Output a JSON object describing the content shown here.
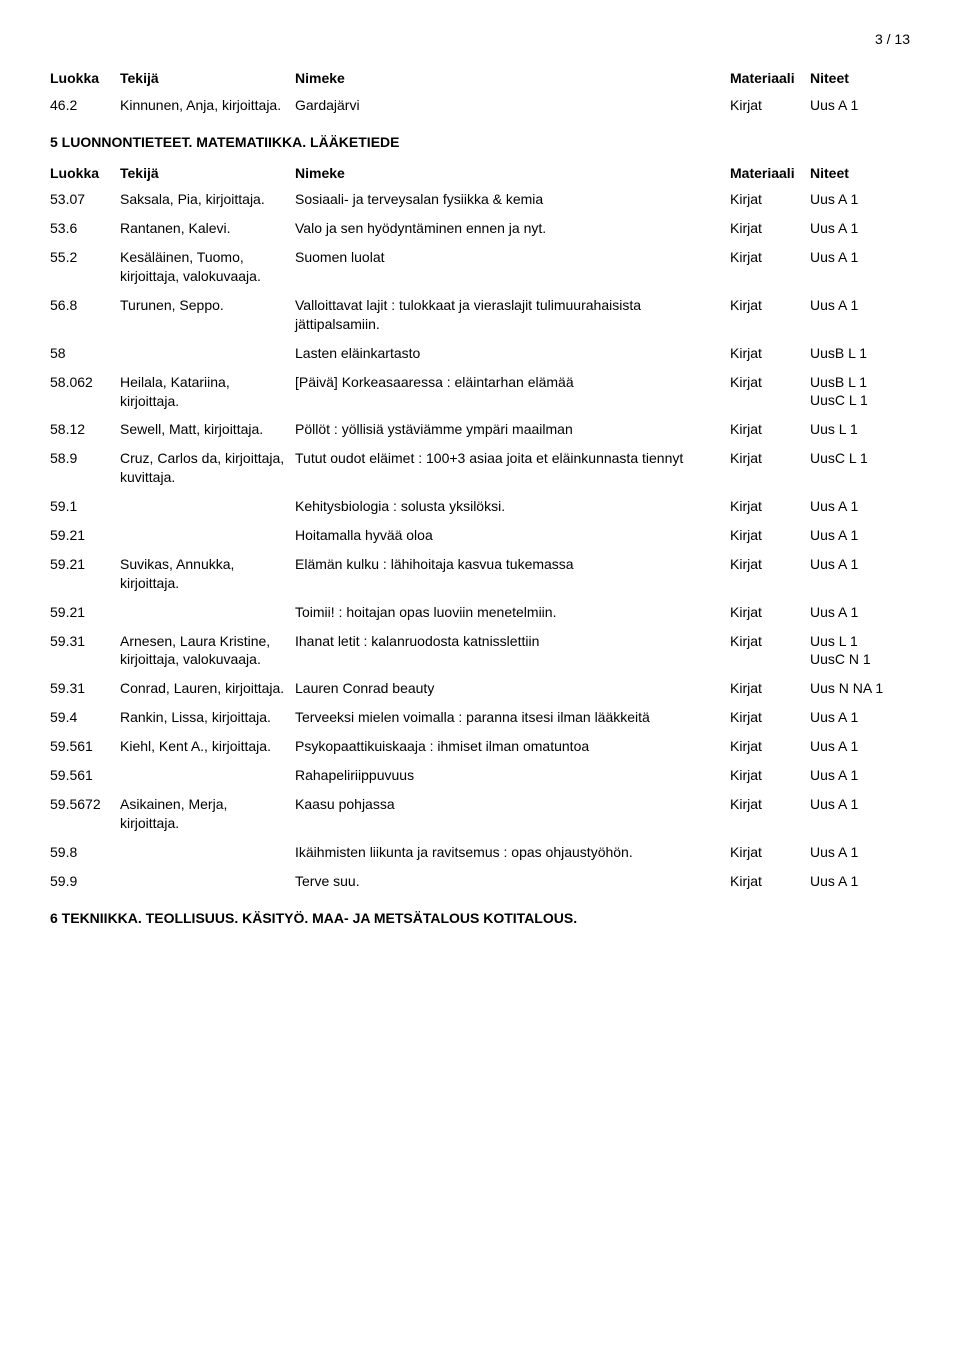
{
  "page_number": "3 / 13",
  "header_labels": {
    "luokka": "Luokka",
    "tekija": "Tekijä",
    "nimeke": "Nimeke",
    "materiaali": "Materiaali",
    "niteet": "Niteet"
  },
  "block1": {
    "rows": [
      {
        "luokka": "46.2",
        "tekija": "Kinnunen, Anja, kirjoittaja.",
        "nimeke": "Gardajärvi",
        "mat": "Kirjat",
        "niteet": [
          "Uus A 1"
        ]
      }
    ]
  },
  "section1_title": "5 LUONNONTIETEET. MATEMATIIKKA. LÄÄKETIEDE",
  "block2": {
    "rows": [
      {
        "luokka": "53.07",
        "tekija": "Saksala, Pia, kirjoittaja.",
        "nimeke": "Sosiaali- ja terveysalan fysiikka & kemia",
        "mat": "Kirjat",
        "niteet": [
          "Uus A 1"
        ]
      },
      {
        "luokka": "53.6",
        "tekija": "Rantanen, Kalevi.",
        "nimeke": "Valo ja sen hyödyntäminen ennen ja nyt.",
        "mat": "Kirjat",
        "niteet": [
          "Uus A 1"
        ]
      },
      {
        "luokka": "55.2",
        "tekija": "Kesäläinen, Tuomo, kirjoittaja, valokuvaaja.",
        "nimeke": "Suomen luolat",
        "mat": "Kirjat",
        "niteet": [
          "Uus A 1"
        ]
      },
      {
        "luokka": "56.8",
        "tekija": "Turunen, Seppo.",
        "nimeke": "Valloittavat lajit : tulokkaat ja vieraslajit tulimuurahaisista jättipalsamiin.",
        "mat": "Kirjat",
        "niteet": [
          "Uus A 1"
        ]
      },
      {
        "luokka": "58",
        "tekija": "",
        "nimeke": "Lasten eläinkartasto",
        "mat": "Kirjat",
        "niteet": [
          "UusB L 1"
        ]
      },
      {
        "luokka": "58.062",
        "tekija": "Heilala, Katariina, kirjoittaja.",
        "nimeke": "[Päivä] Korkeasaaressa : eläintarhan elämää",
        "mat": "Kirjat",
        "niteet": [
          "UusB L 1",
          "UusC L 1"
        ]
      },
      {
        "luokka": "58.12",
        "tekija": "Sewell, Matt, kirjoittaja.",
        "nimeke": "Pöllöt : yöllisiä ystäviämme ympäri maailman",
        "mat": "Kirjat",
        "niteet": [
          "Uus L 1"
        ]
      },
      {
        "luokka": "58.9",
        "tekija": "Cruz, Carlos da, kirjoittaja, kuvittaja.",
        "nimeke": "Tutut oudot eläimet : 100+3 asiaa joita et eläinkunnasta tiennyt",
        "mat": "Kirjat",
        "niteet": [
          "UusC L 1"
        ]
      },
      {
        "luokka": "59.1",
        "tekija": "",
        "nimeke": "Kehitysbiologia : solusta yksilöksi.",
        "mat": "Kirjat",
        "niteet": [
          "Uus A 1"
        ]
      },
      {
        "luokka": "59.21",
        "tekija": "",
        "nimeke": "Hoitamalla hyvää oloa",
        "mat": "Kirjat",
        "niteet": [
          "Uus A 1"
        ]
      },
      {
        "luokka": "59.21",
        "tekija": "Suvikas, Annukka, kirjoittaja.",
        "nimeke": "Elämän kulku : lähihoitaja kasvua tukemassa",
        "mat": "Kirjat",
        "niteet": [
          "Uus A 1"
        ]
      },
      {
        "luokka": "59.21",
        "tekija": "",
        "nimeke": "Toimii! : hoitajan opas luoviin menetelmiin.",
        "mat": "Kirjat",
        "niteet": [
          "Uus A 1"
        ]
      },
      {
        "luokka": "59.31",
        "tekija": "Arnesen, Laura Kristine, kirjoittaja, valokuvaaja.",
        "nimeke": "Ihanat letit : kalanruodosta katnisslettiin",
        "mat": "Kirjat",
        "niteet": [
          "Uus L 1",
          "UusC N 1"
        ]
      },
      {
        "luokka": "59.31",
        "tekija": "Conrad, Lauren, kirjoittaja.",
        "nimeke": "Lauren Conrad beauty",
        "mat": "Kirjat",
        "niteet": [
          "Uus N NA 1"
        ]
      },
      {
        "luokka": "59.4",
        "tekija": "Rankin, Lissa, kirjoittaja.",
        "nimeke": "Terveeksi mielen voimalla : paranna itsesi ilman lääkkeitä",
        "mat": "Kirjat",
        "niteet": [
          "Uus A 1"
        ]
      },
      {
        "luokka": "59.561",
        "tekija": "Kiehl, Kent A., kirjoittaja.",
        "nimeke": "Psykopaattikuiskaaja : ihmiset ilman omatuntoa",
        "mat": "Kirjat",
        "niteet": [
          "Uus A 1"
        ]
      },
      {
        "luokka": "59.561",
        "tekija": "",
        "nimeke": "Rahapeliriippuvuus",
        "mat": "Kirjat",
        "niteet": [
          "Uus A 1"
        ]
      },
      {
        "luokka": "59.5672",
        "tekija": "Asikainen, Merja, kirjoittaja.",
        "nimeke": "Kaasu pohjassa",
        "mat": "Kirjat",
        "niteet": [
          "Uus A 1"
        ]
      },
      {
        "luokka": "59.8",
        "tekija": "",
        "nimeke": "Ikäihmisten liikunta ja ravitsemus : opas ohjaustyöhön.",
        "mat": "Kirjat",
        "niteet": [
          "Uus A 1"
        ]
      },
      {
        "luokka": "59.9",
        "tekija": "",
        "nimeke": "Terve suu.",
        "mat": "Kirjat",
        "niteet": [
          "Uus A 1"
        ]
      }
    ]
  },
  "section2_title": "6 TEKNIIKKA. TEOLLISUUS. KÄSITYÖ. MAA- JA METSÄTALOUS KOTITALOUS."
}
